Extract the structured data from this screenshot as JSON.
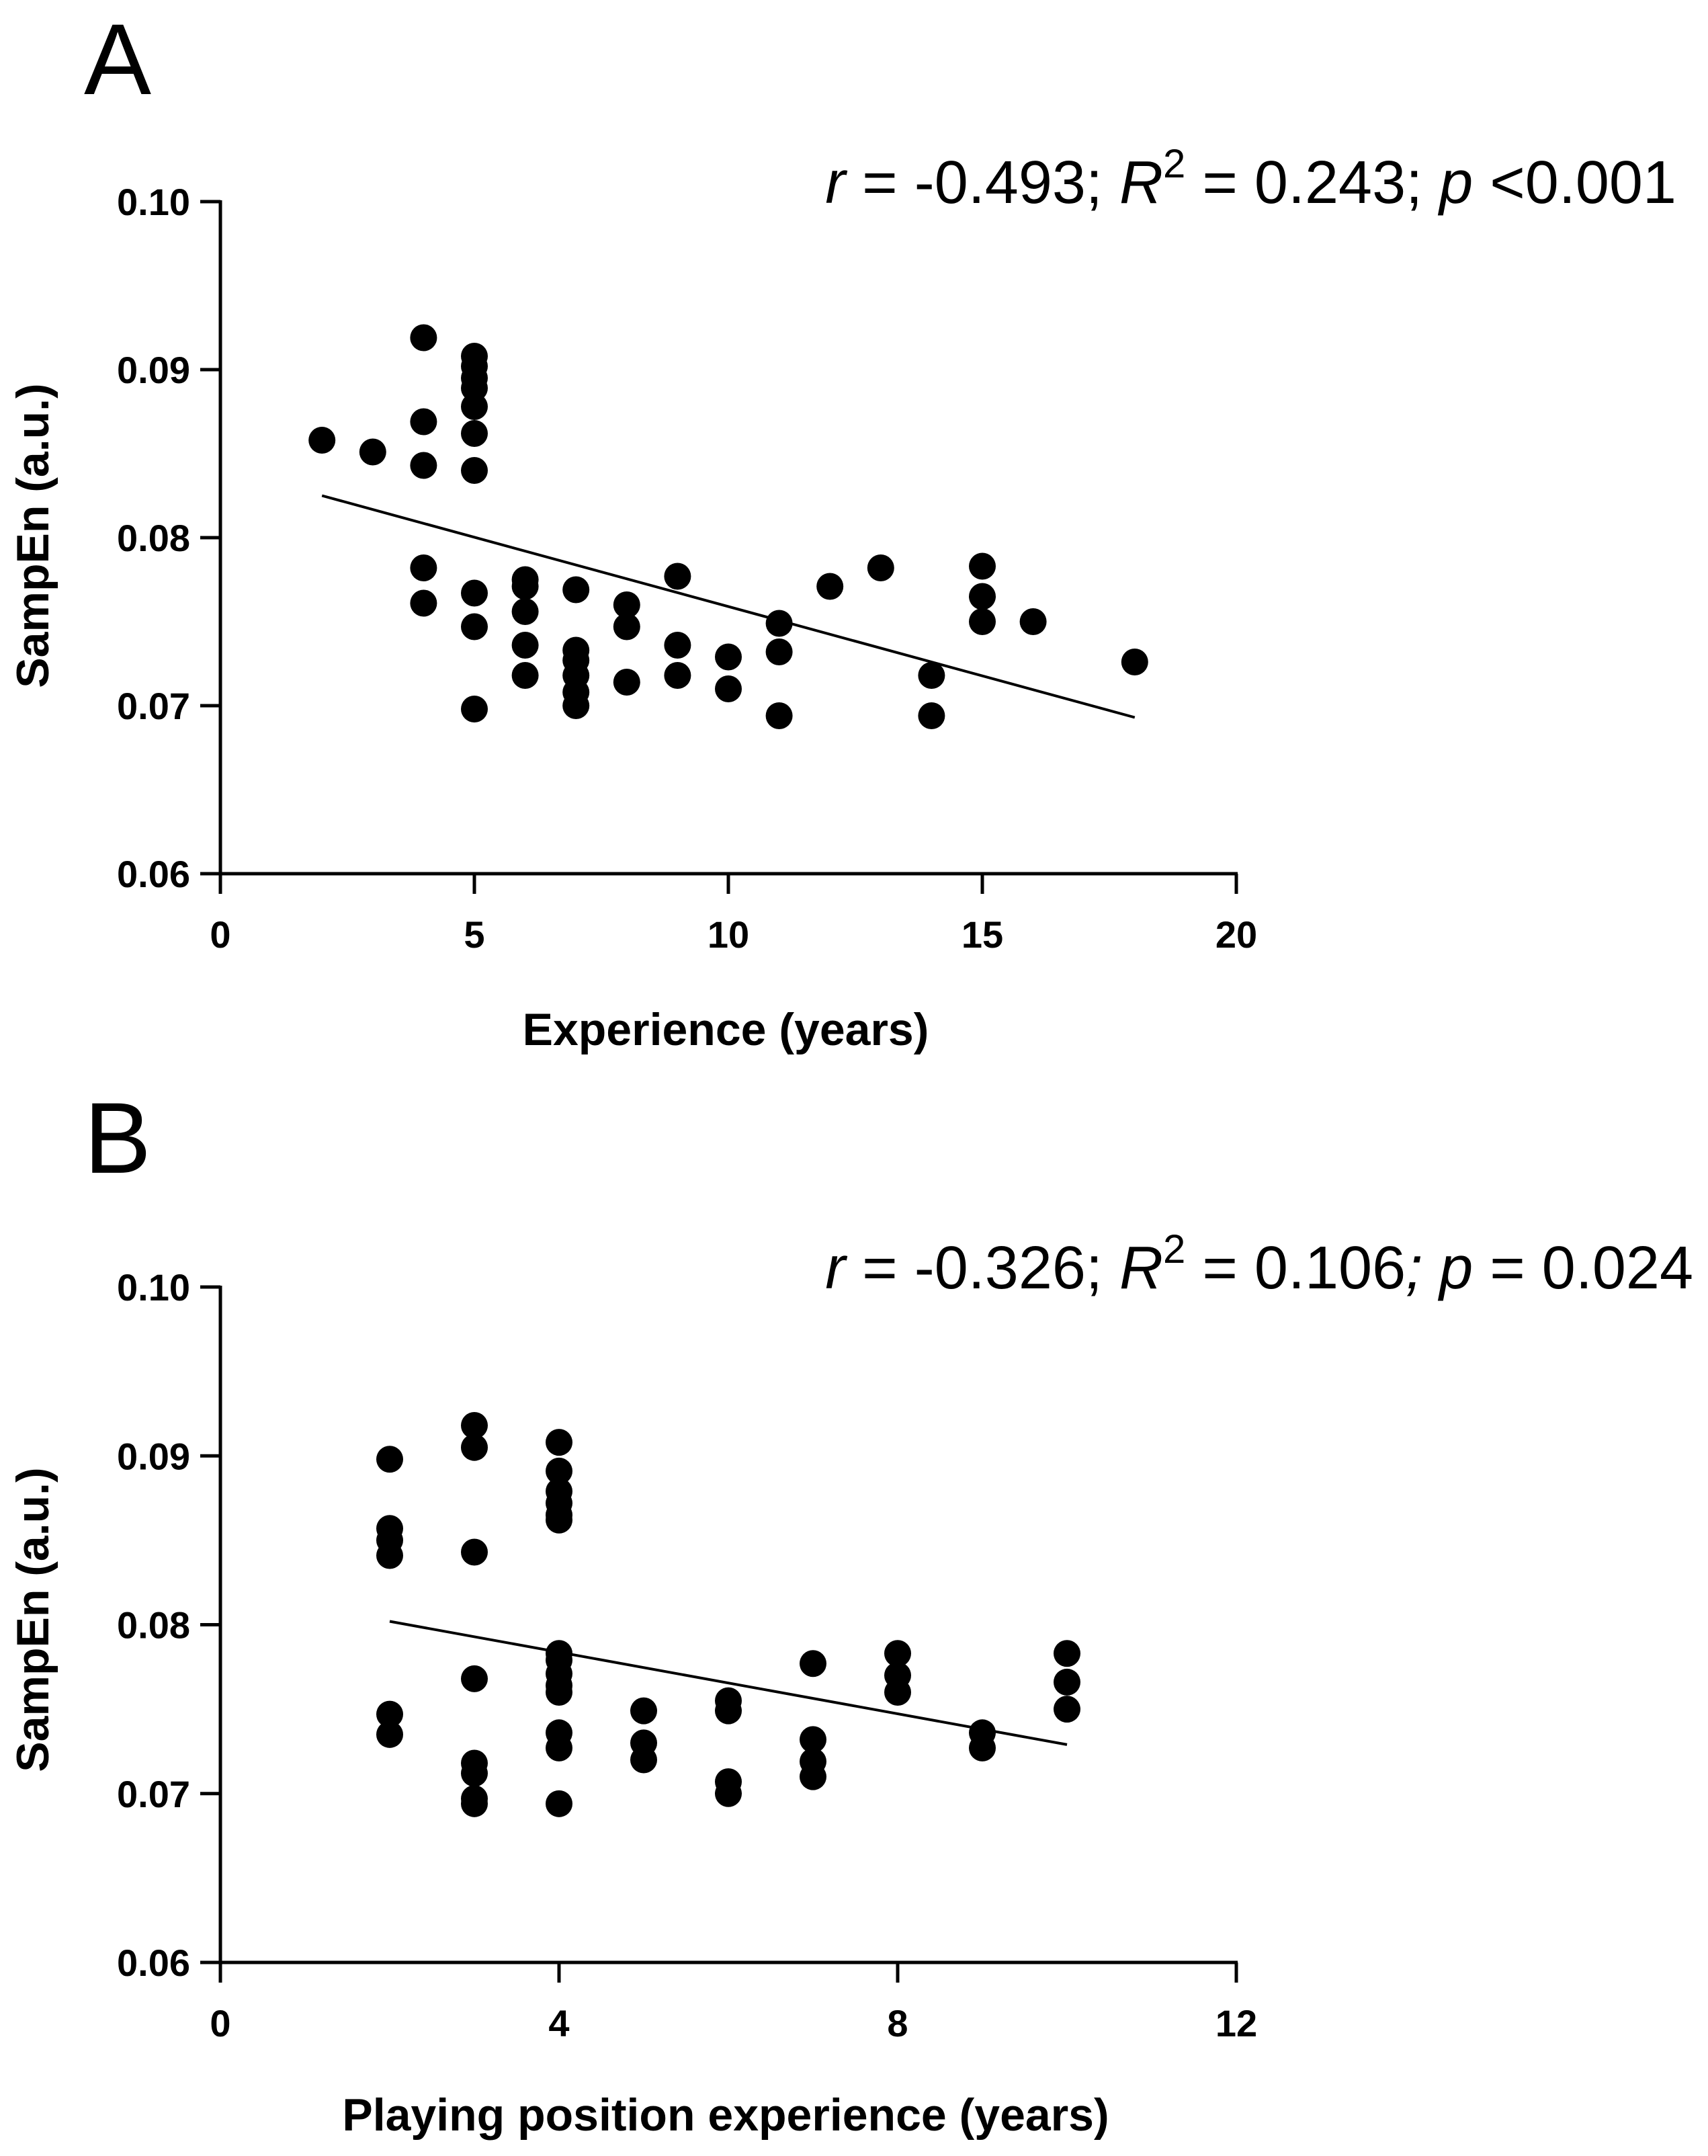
{
  "chart_data": [
    {
      "type": "scatter",
      "panel": "A",
      "stats": {
        "r_sym": "r",
        "r_text": " = -0.493; ",
        "R_sym": "R",
        "R_sup": "2",
        "R_text": " = 0.243; ",
        "p_sym": "p",
        "p_text": " <0.001"
      },
      "xlabel": "Experience (years)",
      "ylabel": "SampEn (a.u.)",
      "xlim": [
        0,
        20
      ],
      "ylim": [
        0.06,
        0.1
      ],
      "xticks": [
        0,
        5,
        10,
        15,
        20
      ],
      "xtick_labels": [
        "0",
        "5",
        "10",
        "15",
        "20"
      ],
      "yticks": [
        0.06,
        0.07,
        0.08,
        0.09,
        0.1
      ],
      "ytick_labels": [
        "0.06",
        "0.07",
        "0.08",
        "0.09",
        "0.10"
      ],
      "points": [
        [
          2,
          0.0858
        ],
        [
          3,
          0.0851
        ],
        [
          4,
          0.0919
        ],
        [
          4,
          0.0869
        ],
        [
          4,
          0.0843
        ],
        [
          4,
          0.0782
        ],
        [
          4,
          0.0761
        ],
        [
          5,
          0.0908
        ],
        [
          5,
          0.0902
        ],
        [
          5,
          0.0895
        ],
        [
          5,
          0.0889
        ],
        [
          5,
          0.0878
        ],
        [
          5,
          0.0862
        ],
        [
          5,
          0.084
        ],
        [
          5,
          0.0767
        ],
        [
          5,
          0.0747
        ],
        [
          5,
          0.0698
        ],
        [
          6,
          0.0775
        ],
        [
          6,
          0.0771
        ],
        [
          6,
          0.0756
        ],
        [
          6,
          0.0736
        ],
        [
          6,
          0.0718
        ],
        [
          7,
          0.0769
        ],
        [
          7,
          0.0733
        ],
        [
          7,
          0.0727
        ],
        [
          7,
          0.0718
        ],
        [
          7,
          0.0708
        ],
        [
          7,
          0.07
        ],
        [
          8,
          0.076
        ],
        [
          8,
          0.0747
        ],
        [
          8,
          0.0714
        ],
        [
          9,
          0.0777
        ],
        [
          9,
          0.0736
        ],
        [
          9,
          0.0718
        ],
        [
          10,
          0.0729
        ],
        [
          10,
          0.071
        ],
        [
          11,
          0.0749
        ],
        [
          11,
          0.0732
        ],
        [
          11,
          0.0694
        ],
        [
          12,
          0.0771
        ],
        [
          13,
          0.0782
        ],
        [
          14,
          0.0718
        ],
        [
          14,
          0.0694
        ],
        [
          15,
          0.0783
        ],
        [
          15,
          0.0765
        ],
        [
          15,
          0.075
        ],
        [
          16,
          0.075
        ],
        [
          18,
          0.0726
        ]
      ],
      "fit_line": {
        "x": [
          2,
          18
        ],
        "y": [
          0.0825,
          0.0693
        ]
      }
    },
    {
      "type": "scatter",
      "panel": "B",
      "stats": {
        "r_sym": "r",
        "r_text": " = -0.326; ",
        "R_sym": "R",
        "R_sup": "2",
        "R_text": " = 0.106",
        "p_sym": "; p",
        "p_text": " = 0.024"
      },
      "xlabel": "Playing position experience (years)",
      "ylabel": "SampEn (a.u.)",
      "xlim": [
        0,
        12
      ],
      "ylim": [
        0.06,
        0.1
      ],
      "xticks": [
        0,
        4,
        8,
        12
      ],
      "xtick_labels": [
        "0",
        "4",
        "8",
        "12"
      ],
      "yticks": [
        0.06,
        0.07,
        0.08,
        0.09,
        0.1
      ],
      "ytick_labels": [
        "0.06",
        "0.07",
        "0.08",
        "0.09",
        "0.10"
      ],
      "points": [
        [
          2,
          0.0898
        ],
        [
          2,
          0.0857
        ],
        [
          2,
          0.085
        ],
        [
          2,
          0.0841
        ],
        [
          2,
          0.0747
        ],
        [
          2,
          0.0735
        ],
        [
          3,
          0.0918
        ],
        [
          3,
          0.0905
        ],
        [
          3,
          0.0843
        ],
        [
          3,
          0.0768
        ],
        [
          3,
          0.0718
        ],
        [
          3,
          0.0712
        ],
        [
          3,
          0.0697
        ],
        [
          3,
          0.0694
        ],
        [
          4,
          0.0908
        ],
        [
          4,
          0.0891
        ],
        [
          4,
          0.0879
        ],
        [
          4,
          0.0872
        ],
        [
          4,
          0.0865
        ],
        [
          4,
          0.0862
        ],
        [
          4,
          0.0783
        ],
        [
          4,
          0.0779
        ],
        [
          4,
          0.0771
        ],
        [
          4,
          0.0764
        ],
        [
          4,
          0.076
        ],
        [
          4,
          0.0736
        ],
        [
          4,
          0.0727
        ],
        [
          4,
          0.0694
        ],
        [
          5,
          0.0749
        ],
        [
          5,
          0.073
        ],
        [
          5,
          0.072
        ],
        [
          6,
          0.0755
        ],
        [
          6,
          0.0749
        ],
        [
          6,
          0.0707
        ],
        [
          6,
          0.07
        ],
        [
          7,
          0.0777
        ],
        [
          7,
          0.0732
        ],
        [
          7,
          0.0719
        ],
        [
          7,
          0.071
        ],
        [
          8,
          0.0783
        ],
        [
          8,
          0.077
        ],
        [
          8,
          0.076
        ],
        [
          9,
          0.0736
        ],
        [
          9,
          0.0727
        ],
        [
          10,
          0.0783
        ],
        [
          10,
          0.0766
        ],
        [
          10,
          0.075
        ]
      ],
      "fit_line": {
        "x": [
          2,
          10
        ],
        "y": [
          0.0802,
          0.0729
        ]
      }
    }
  ]
}
